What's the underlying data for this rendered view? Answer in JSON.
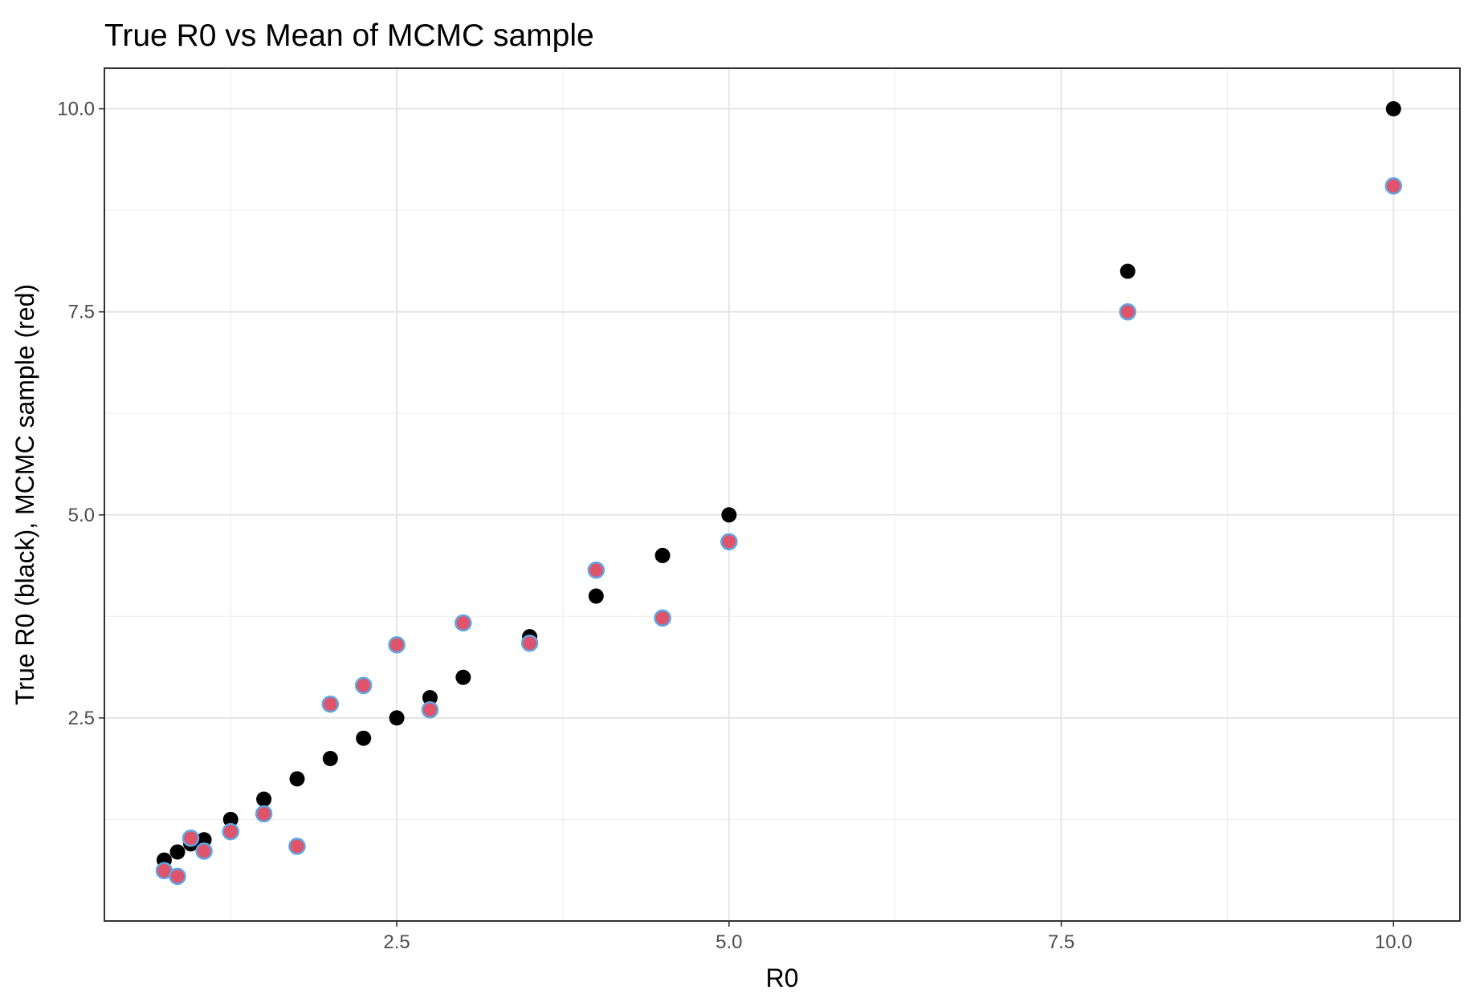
{
  "chart_data": {
    "type": "scatter",
    "title": "True R0 vs Mean of MCMC sample",
    "xlabel": "R0",
    "ylabel": "True R0 (black), MCMC sample (red)",
    "xlim": [
      0.3,
      10.5
    ],
    "ylim": [
      0.0,
      10.5
    ],
    "x_ticks": [
      2.5,
      5.0,
      7.5,
      10.0
    ],
    "x_tick_labels": [
      "2.5",
      "5.0",
      "7.5",
      "10.0"
    ],
    "y_ticks": [
      2.5,
      5.0,
      7.5,
      10.0
    ],
    "y_tick_labels": [
      "2.5",
      "5.0",
      "7.5",
      "10.0"
    ],
    "grid": true,
    "legend": "none",
    "series": [
      {
        "color": "#000000",
        "x": [
          0.75,
          0.85,
          0.95,
          1.05,
          1.25,
          1.5,
          1.75,
          2.0,
          2.25,
          2.5,
          2.75,
          3.0,
          3.5,
          4.0,
          4.5,
          5.0,
          8.0,
          10.0
        ],
        "y": [
          0.75,
          0.85,
          0.95,
          1.0,
          1.25,
          1.5,
          1.75,
          2.0,
          2.25,
          2.5,
          2.75,
          3.0,
          3.5,
          4.0,
          4.5,
          5.0,
          8.0,
          10.0
        ]
      },
      {
        "color": "#df536b",
        "outline": "#61a5e2",
        "x": [
          0.75,
          0.85,
          0.95,
          1.05,
          1.25,
          1.5,
          1.75,
          2.0,
          2.25,
          2.5,
          2.75,
          3.0,
          3.5,
          4.0,
          4.5,
          5.0,
          8.0,
          10.0
        ],
        "y": [
          0.62,
          0.55,
          1.02,
          0.86,
          1.1,
          1.32,
          0.92,
          2.67,
          2.9,
          3.4,
          2.6,
          3.67,
          3.42,
          4.32,
          3.73,
          4.67,
          7.5,
          9.05
        ]
      }
    ]
  }
}
